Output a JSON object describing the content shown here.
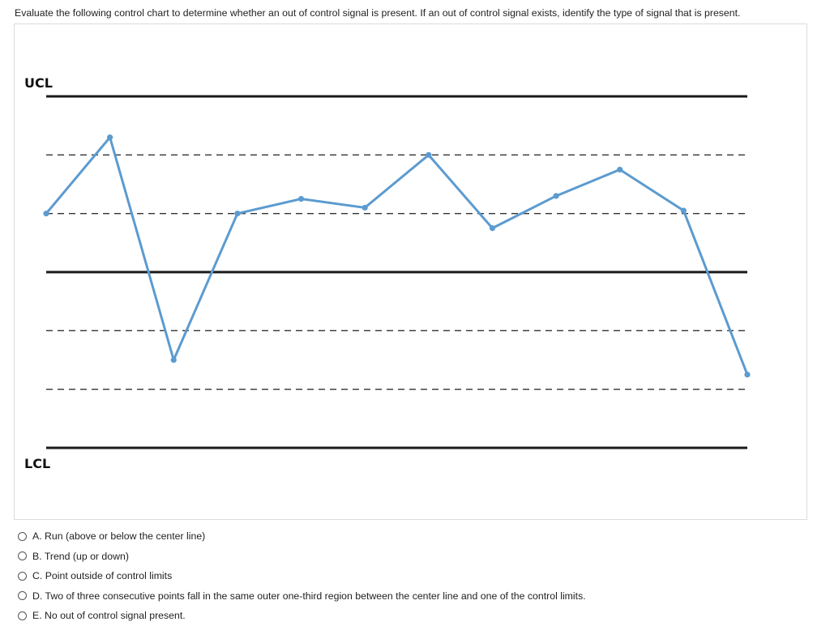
{
  "question": "Evaluate the following control chart to determine whether an out of control signal is present.  If an out of control signal exists, identify the type of signal that is present.",
  "chart_data": {
    "type": "line",
    "title": "",
    "xlabel": "",
    "ylabel": "",
    "ylim": [
      -3,
      3
    ],
    "limit_labels": {
      "ucl": "UCL",
      "lcl": "LCL"
    },
    "control_lines": {
      "ucl": 3,
      "center": 0,
      "lcl": -3
    },
    "zone_lines": [
      2,
      1,
      -1,
      -2
    ],
    "series": [
      {
        "color": "#5b9bd0",
        "x": [
          1,
          2,
          3,
          4,
          5,
          6,
          7,
          8,
          9,
          10,
          11,
          12
        ],
        "values": [
          1.0,
          2.3,
          -1.5,
          1.0,
          1.25,
          1.1,
          2.0,
          0.75,
          1.3,
          1.75,
          1.05,
          -1.75
        ]
      }
    ],
    "grid": false
  },
  "options": [
    {
      "letter": "A.",
      "text": "Run (above or below the center line)"
    },
    {
      "letter": "B.",
      "text": "Trend (up or down)"
    },
    {
      "letter": "C.",
      "text": "Point outside of control limits"
    },
    {
      "letter": "D.",
      "text": "Two of three consecutive points fall in the same outer one-third region between the center line and one of the control limits."
    },
    {
      "letter": "E.",
      "text": "No out of control signal present."
    }
  ]
}
